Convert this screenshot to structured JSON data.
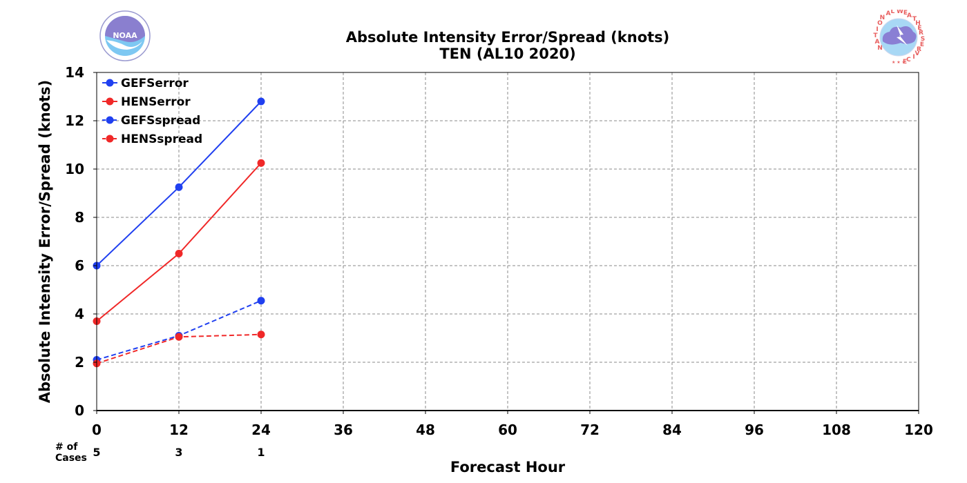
{
  "header": {
    "title": "Absolute Intensity Error/Spread (knots)",
    "subtitle": "TEN (AL10 2020)"
  },
  "logos": {
    "left": {
      "text": "NOAA",
      "icon": "noaa-logo-icon"
    },
    "right": {
      "text": "NATIONAL WEATHER SERVICE",
      "icon": "nws-logo-icon"
    }
  },
  "cases": {
    "label_line1": "# of",
    "label_line2": "Cases",
    "x": [
      0,
      12,
      24
    ],
    "counts": [
      "5",
      "3",
      "1"
    ]
  },
  "chart_data": {
    "type": "line",
    "xlabel": "Forecast Hour",
    "ylabel": "Absolute Intensity Error/Spread (knots)",
    "xlim": [
      0,
      120
    ],
    "ylim": [
      0,
      14
    ],
    "xticks": [
      0,
      12,
      24,
      36,
      48,
      60,
      72,
      84,
      96,
      108,
      120
    ],
    "yticks": [
      0,
      2,
      4,
      6,
      8,
      10,
      12,
      14
    ],
    "grid": true,
    "legend_position": "top-left",
    "series": [
      {
        "name": "GEFSerror",
        "color": "#2040f0",
        "dash": "solid",
        "x": [
          0,
          12,
          24
        ],
        "y": [
          6.0,
          9.25,
          12.8
        ]
      },
      {
        "name": "HENSerror",
        "color": "#f02828",
        "dash": "solid",
        "x": [
          0,
          12,
          24
        ],
        "y": [
          3.7,
          6.5,
          10.25
        ]
      },
      {
        "name": "GEFSspread",
        "color": "#2040f0",
        "dash": "dashed",
        "x": [
          0,
          12,
          24
        ],
        "y": [
          2.1,
          3.1,
          4.55
        ]
      },
      {
        "name": "HENSspread",
        "color": "#f02828",
        "dash": "dashed",
        "x": [
          0,
          12,
          24
        ],
        "y": [
          1.95,
          3.05,
          3.15
        ]
      }
    ]
  }
}
